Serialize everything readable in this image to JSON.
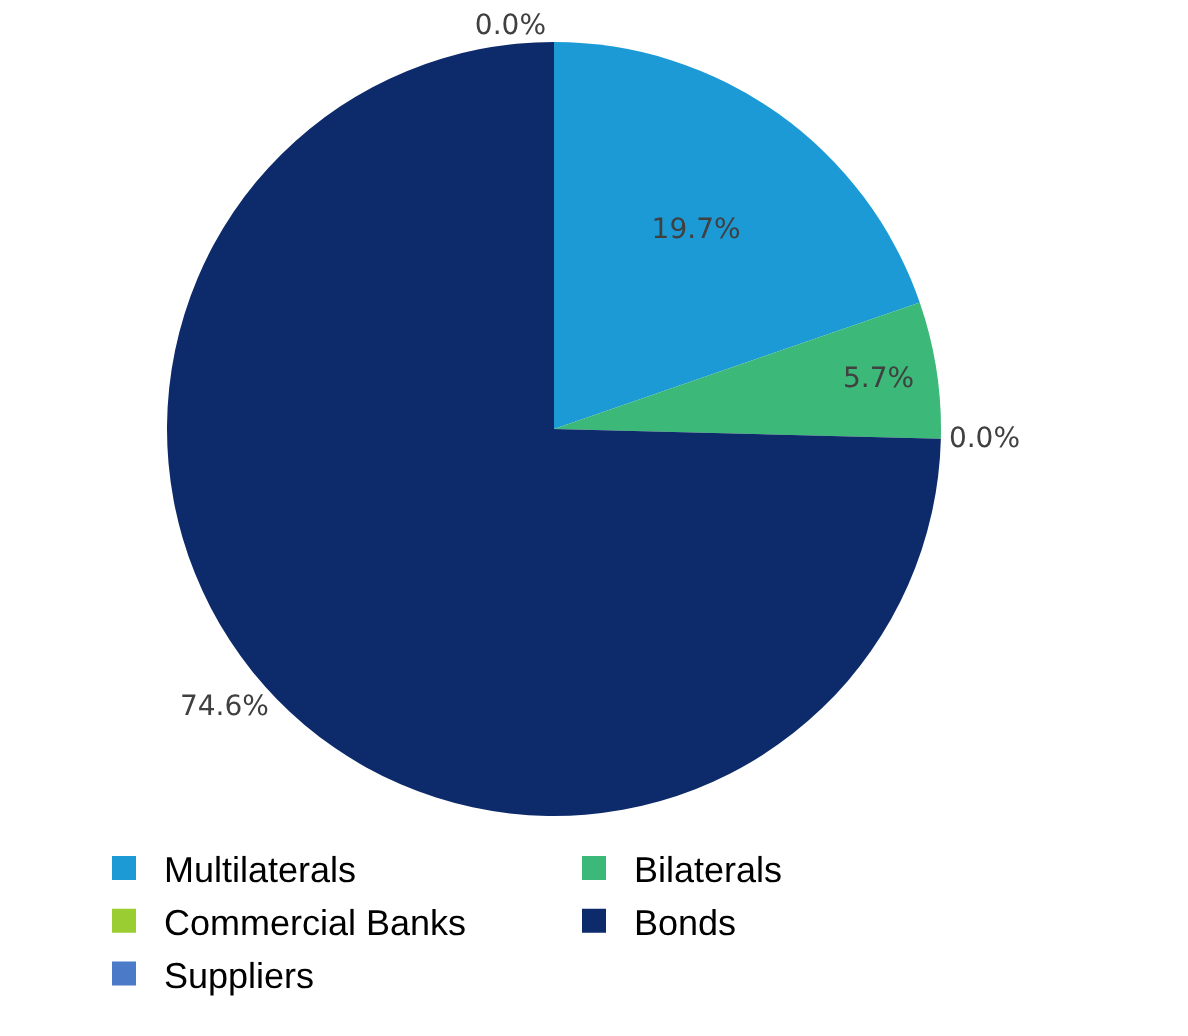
{
  "chart_data": {
    "type": "pie",
    "categories": [
      "Multilaterals",
      "Bilaterals",
      "Commercial Banks",
      "Bonds",
      "Suppliers"
    ],
    "values": [
      19.7,
      5.7,
      0.0,
      74.6,
      0.0
    ],
    "value_labels": [
      "19.7%",
      "5.7%",
      "0.0%",
      "74.6%",
      "0.0%"
    ],
    "colors": [
      "#1b9ad6",
      "#3cb878",
      "#9acd32",
      "#0d2a6b",
      "#4a7ac8"
    ],
    "legend": "bottom"
  }
}
